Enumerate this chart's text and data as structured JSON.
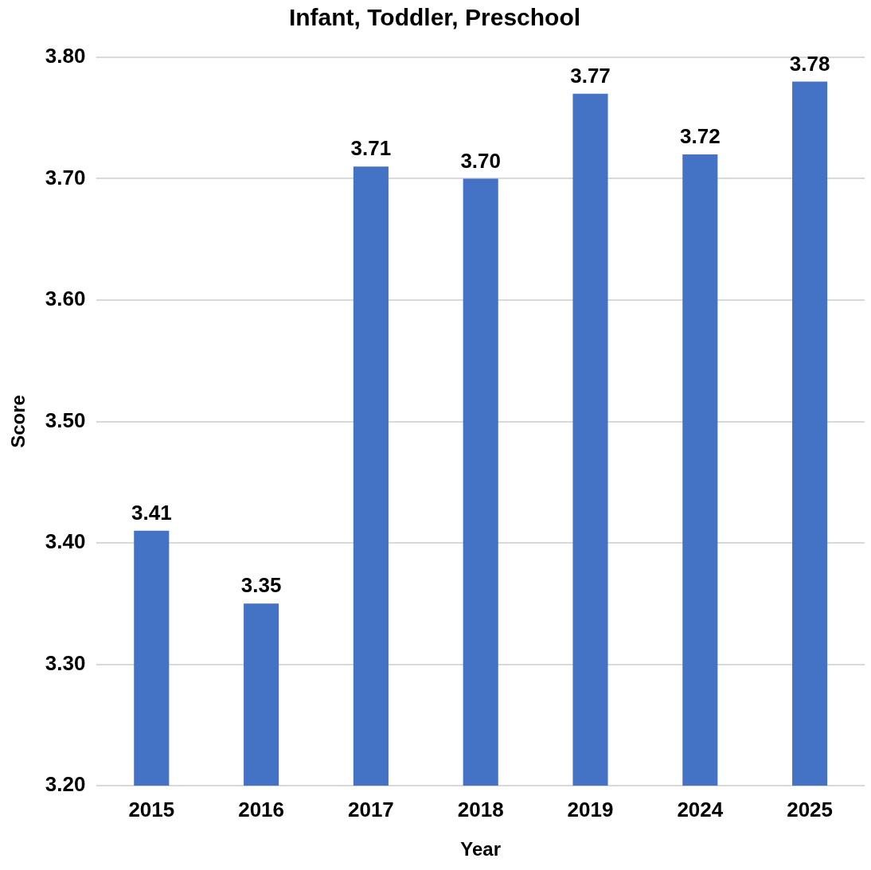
{
  "chart_data": {
    "type": "bar",
    "title": "Infant, Toddler, Preschool",
    "xlabel": "Year",
    "ylabel": "Score",
    "categories": [
      "2015",
      "2016",
      "2017",
      "2018",
      "2019",
      "2024",
      "2025"
    ],
    "values": [
      3.41,
      3.35,
      3.71,
      3.7,
      3.77,
      3.72,
      3.78
    ],
    "value_labels": [
      "3.41",
      "3.35",
      "3.71",
      "3.70",
      "3.77",
      "3.72",
      "3.78"
    ],
    "color": "#4472c4",
    "ylim": [
      3.2,
      3.8
    ],
    "yticks": [
      {
        "value": 3.2,
        "label": "3.20"
      },
      {
        "value": 3.3,
        "label": "3.30"
      },
      {
        "value": 3.4,
        "label": "3.40"
      },
      {
        "value": 3.5,
        "label": "3.50"
      },
      {
        "value": 3.6,
        "label": "3.60"
      },
      {
        "value": 3.7,
        "label": "3.70"
      },
      {
        "value": 3.8,
        "label": "3.80"
      }
    ],
    "grid": "y",
    "legend": false
  }
}
